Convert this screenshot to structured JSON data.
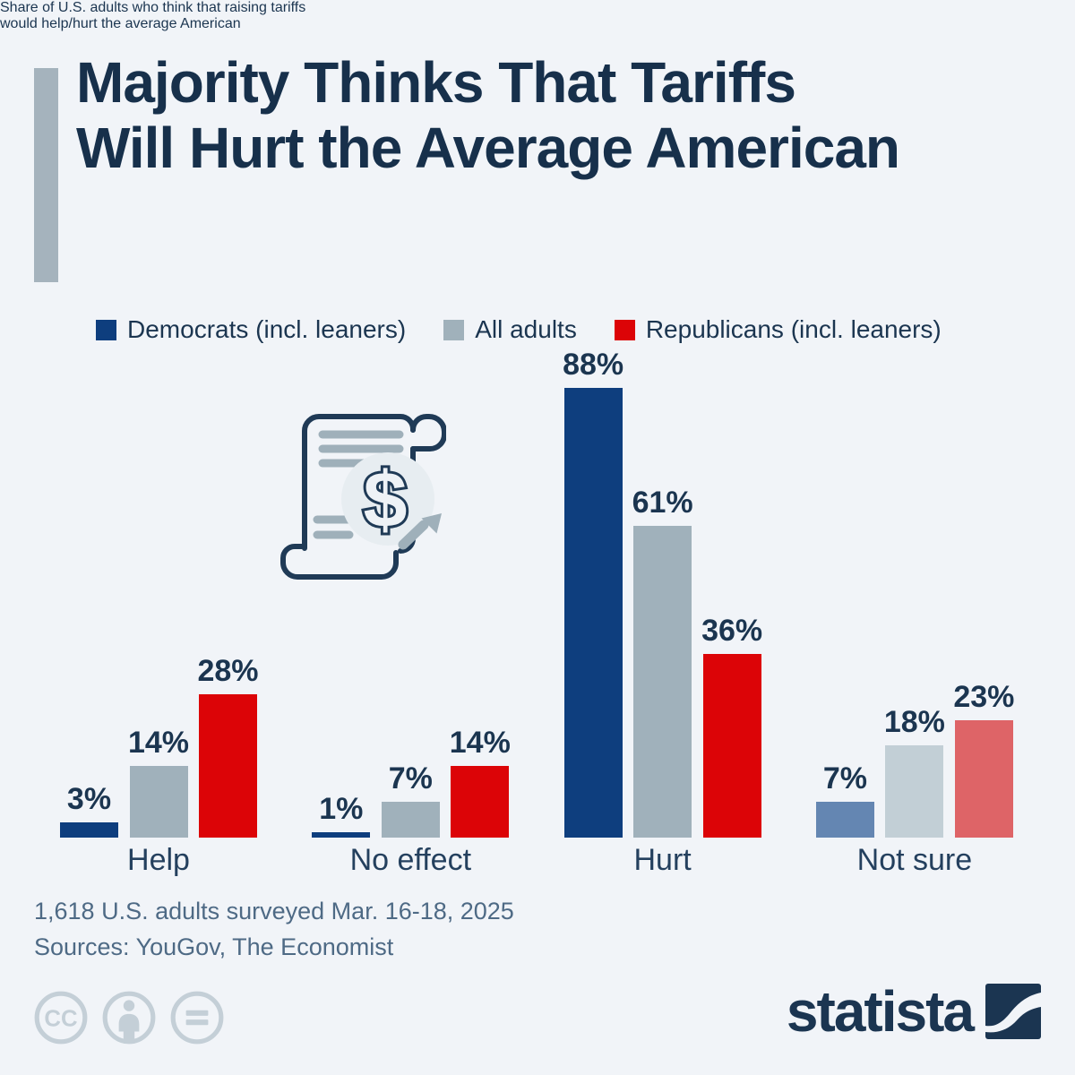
{
  "header": {
    "title_line1": "Majority Thinks That Tariffs",
    "title_line2": "Will Hurt the Average American",
    "subtitle_line1": "Share of U.S. adults who think that raising tariffs",
    "subtitle_line2": "would help/hurt the average American"
  },
  "legend": [
    {
      "label": "Democrats (incl. leaners)",
      "color": "#0e3e7e"
    },
    {
      "label": "All adults",
      "color": "#a0b1bb"
    },
    {
      "label": "Republicans (incl. leaners)",
      "color": "#dc0407"
    }
  ],
  "chart_data": {
    "type": "bar",
    "title": "Majority Thinks That Tariffs Will Hurt the Average American",
    "subtitle": "Share of U.S. adults who think that raising tariffs would help/hurt the average American",
    "categories": [
      "Help",
      "No effect",
      "Hurt",
      "Not sure"
    ],
    "series": [
      {
        "name": "Democrats (incl. leaners)",
        "color": "#0e3e7e",
        "muted_color": "#6486b2",
        "values": [
          3,
          1,
          88,
          7
        ]
      },
      {
        "name": "All adults",
        "color": "#a0b1bb",
        "muted_color": "#c2cfd6",
        "values": [
          14,
          7,
          61,
          18
        ]
      },
      {
        "name": "Republicans (incl. leaners)",
        "color": "#dc0407",
        "muted_color": "#de6467",
        "values": [
          28,
          14,
          36,
          23
        ]
      }
    ],
    "muted_categories": [
      "Not sure"
    ],
    "value_suffix": "%",
    "ylim": [
      0,
      100
    ],
    "grid": false,
    "legend_position": "top",
    "value_labels": "above-bars"
  },
  "icon": {
    "name": "tariff-scroll-dollar-icon"
  },
  "footer": {
    "line1": "1,618 U.S. adults surveyed Mar. 16-18, 2025",
    "line2": "Sources: YouGov, The Economist",
    "brand": "statista",
    "license_icons": [
      "cc-icon",
      "attribution-person-icon",
      "equals-icon"
    ]
  },
  "colors": {
    "background": "#f1f4f8",
    "accent_bar": "#a5b3bd",
    "title_text": "#17304b",
    "subtitle_text": "#52708e",
    "body_text": "#1b3550",
    "footer_text": "#4e6a85",
    "license_gray": "#c4cfd7",
    "brand_navy": "#1b3551"
  }
}
